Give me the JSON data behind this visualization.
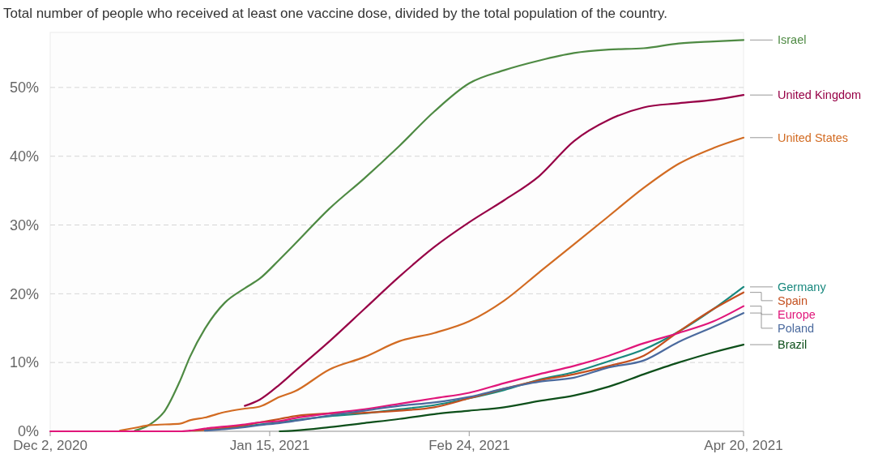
{
  "chart_data": {
    "type": "line",
    "title": "Total number of people who received at least one vaccine dose, divided by the total population of the country.",
    "x": [
      "2020-12-02",
      "2020-12-09",
      "2020-12-16",
      "2020-12-19",
      "2020-12-22",
      "2020-12-25",
      "2020-12-28",
      "2020-12-30",
      "2021-01-02",
      "2021-01-06",
      "2021-01-10",
      "2021-01-13",
      "2021-01-17",
      "2021-01-20",
      "2021-01-27",
      "2021-02-03",
      "2021-02-10",
      "2021-02-17",
      "2021-02-24",
      "2021-03-03",
      "2021-03-10",
      "2021-03-17",
      "2021-03-24",
      "2021-03-31",
      "2021-04-07",
      "2021-04-14",
      "2021-04-20"
    ],
    "xlim": [
      "2020-12-02",
      "2021-04-20"
    ],
    "xticks": [
      {
        "value": "2020-12-02",
        "label": "Dec 2, 2020"
      },
      {
        "value": "2021-01-15",
        "label": "Jan 15, 2021"
      },
      {
        "value": "2021-02-24",
        "label": "Feb 24, 2021"
      },
      {
        "value": "2021-04-20",
        "label": "Apr 20, 2021"
      }
    ],
    "ylim": [
      0,
      58
    ],
    "yticks": [
      {
        "value": 0,
        "label": "0%"
      },
      {
        "value": 10,
        "label": "10%"
      },
      {
        "value": 20,
        "label": "20%"
      },
      {
        "value": 30,
        "label": "30%"
      },
      {
        "value": 40,
        "label": "40%"
      },
      {
        "value": 50,
        "label": "50%"
      }
    ],
    "grid": "y",
    "legend": "right",
    "series": [
      {
        "name": "Israel",
        "color": "#4e8a43",
        "values": [
          null,
          null,
          null,
          0.1,
          1.0,
          3.0,
          7.3,
          10.8,
          14.9,
          18.7,
          20.8,
          22.2,
          25.0,
          27.2,
          32.4,
          36.8,
          41.5,
          46.5,
          50.6,
          52.5,
          53.9,
          55.0,
          55.5,
          55.7,
          56.4,
          56.7,
          56.9
        ]
      },
      {
        "name": "United Kingdom",
        "color": "#970046",
        "values": [
          null,
          null,
          null,
          null,
          null,
          null,
          null,
          null,
          null,
          null,
          3.7,
          4.6,
          6.8,
          8.7,
          13.1,
          17.8,
          22.5,
          26.8,
          30.4,
          33.6,
          37.1,
          42.2,
          45.3,
          47.1,
          47.7,
          48.2,
          48.9
        ]
      },
      {
        "name": "United States",
        "color": "#d26b22",
        "values": [
          null,
          null,
          0.1,
          0.5,
          0.9,
          1.0,
          1.1,
          1.6,
          2.0,
          2.8,
          3.3,
          3.6,
          5.0,
          5.8,
          9.0,
          10.8,
          13.1,
          14.3,
          16.0,
          19.0,
          23.1,
          27.2,
          31.3,
          35.4,
          38.9,
          41.2,
          42.7
        ]
      },
      {
        "name": "Germany",
        "color": "#18887e",
        "values": [
          null,
          null,
          null,
          null,
          null,
          null,
          null,
          null,
          0.2,
          0.4,
          0.7,
          1.0,
          1.3,
          1.6,
          2.2,
          2.6,
          3.2,
          3.8,
          4.8,
          6.0,
          7.5,
          8.6,
          10.2,
          11.9,
          14.5,
          17.8,
          21.0
        ]
      },
      {
        "name": "Spain",
        "color": "#c4501f",
        "values": [
          null,
          null,
          null,
          null,
          null,
          null,
          null,
          0.1,
          0.2,
          0.5,
          0.9,
          1.3,
          1.8,
          2.2,
          2.6,
          2.7,
          3.0,
          3.5,
          4.8,
          6.2,
          7.4,
          8.3,
          9.5,
          11.0,
          14.5,
          17.8,
          20.2
        ]
      },
      {
        "name": "Europe",
        "color": "#e0167a",
        "values": [
          0,
          0,
          0,
          0,
          0,
          0,
          0,
          0.1,
          0.4,
          0.7,
          1.0,
          1.3,
          1.5,
          1.9,
          2.6,
          3.2,
          4.0,
          4.8,
          5.6,
          7.0,
          8.3,
          9.5,
          11.0,
          12.8,
          14.3,
          16.0,
          18.2
        ]
      },
      {
        "name": "Poland",
        "color": "#4b6a9e",
        "values": [
          null,
          null,
          null,
          null,
          null,
          null,
          null,
          null,
          0.1,
          0.3,
          0.6,
          0.9,
          1.2,
          1.5,
          2.3,
          3.0,
          3.7,
          4.2,
          5.0,
          6.2,
          7.2,
          7.8,
          9.3,
          10.3,
          13.0,
          15.2,
          17.2
        ]
      },
      {
        "name": "Brazil",
        "color": "#0d4f1a",
        "values": [
          null,
          null,
          null,
          null,
          null,
          null,
          null,
          null,
          null,
          null,
          null,
          null,
          0.0,
          0.1,
          0.6,
          1.2,
          1.8,
          2.5,
          3.0,
          3.5,
          4.4,
          5.2,
          6.5,
          8.3,
          10.0,
          11.5,
          12.6
        ]
      }
    ]
  }
}
